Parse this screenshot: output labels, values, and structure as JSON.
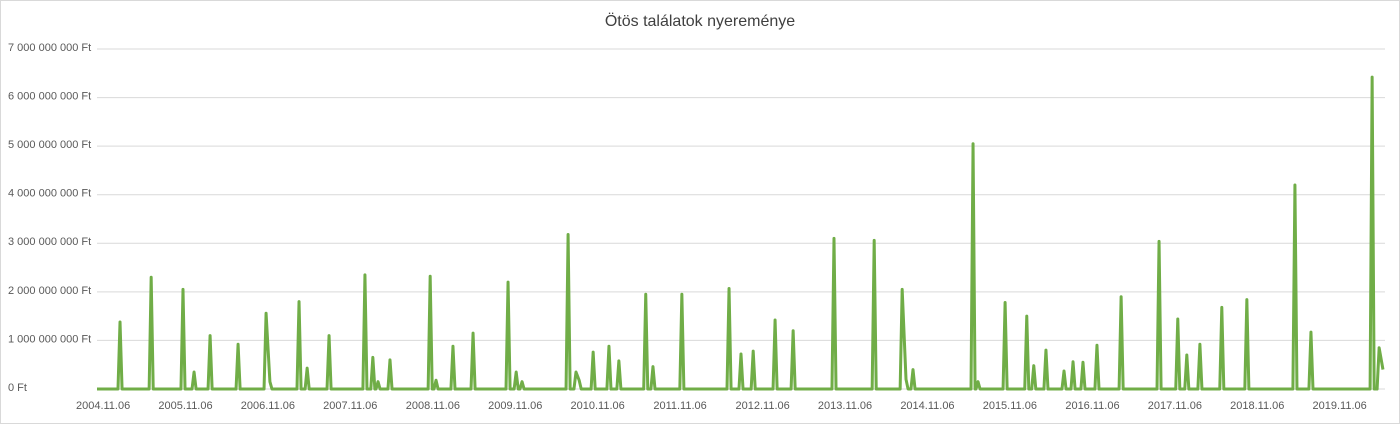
{
  "chart_data": {
    "type": "line",
    "title": "Ötös találatok nyereménye",
    "x": [
      "2004.10.10",
      "2005.01.11",
      "2005.01.20",
      "2005.01.29",
      "2005.05.29",
      "2005.06.07",
      "2005.06.16",
      "2005.10.17",
      "2005.10.26",
      "2005.11.04",
      "2005.12.05",
      "2005.12.14",
      "2005.12.23",
      "2006.02.14",
      "2006.02.23",
      "2006.03.04",
      "2006.06.18",
      "2006.06.27",
      "2006.07.06",
      "2006.10.20",
      "2006.10.29",
      "2006.11.15",
      "2006.11.24",
      "2007.03.15",
      "2007.03.24",
      "2007.04.02",
      "2007.04.20",
      "2007.04.29",
      "2007.05.08",
      "2007.07.26",
      "2007.08.04",
      "2007.08.13",
      "2008.01.01",
      "2008.01.10",
      "2008.01.19",
      "2008.02.05",
      "2008.02.14",
      "2008.02.23",
      "2008.02.28",
      "2008.03.08",
      "2008.03.17",
      "2008.04.21",
      "2008.04.30",
      "2008.05.09",
      "2008.10.16",
      "2008.10.25",
      "2008.11.03",
      "2008.11.11",
      "2008.11.20",
      "2008.11.29",
      "2009.01.25",
      "2009.02.03",
      "2009.02.12",
      "2009.04.24",
      "2009.05.03",
      "2009.05.12",
      "2009.09.26",
      "2009.10.05",
      "2009.10.14",
      "2009.11.01",
      "2009.11.10",
      "2009.11.19",
      "2009.11.27",
      "2009.12.06",
      "2009.12.15",
      "2010.06.19",
      "2010.06.28",
      "2010.07.07",
      "2010.07.24",
      "2010.08.02",
      "2010.08.16",
      "2010.08.25",
      "2010.10.08",
      "2010.10.17",
      "2010.10.26",
      "2010.12.17",
      "2010.12.26",
      "2011.01.04",
      "2011.01.30",
      "2011.02.08",
      "2011.02.17",
      "2011.05.29",
      "2011.06.07",
      "2011.06.16",
      "2011.06.30",
      "2011.07.09",
      "2011.07.18",
      "2011.11.05",
      "2011.11.14",
      "2011.11.23",
      "2012.06.01",
      "2012.06.10",
      "2012.06.19",
      "2012.07.24",
      "2012.08.02",
      "2012.08.11",
      "2012.09.16",
      "2012.09.25",
      "2012.10.04",
      "2012.12.22",
      "2012.12.31",
      "2013.01.09",
      "2013.03.12",
      "2013.03.21",
      "2013.03.30",
      "2013.09.09",
      "2013.09.18",
      "2013.09.27",
      "2014.03.06",
      "2014.03.15",
      "2014.03.24",
      "2014.07.08",
      "2014.07.17",
      "2014.08.03",
      "2014.08.12",
      "2014.08.25",
      "2014.09.03",
      "2014.09.12",
      "2015.05.18",
      "2015.05.27",
      "2015.06.05",
      "2015.06.09",
      "2015.06.18",
      "2015.06.27",
      "2015.10.07",
      "2015.10.16",
      "2015.10.25",
      "2016.01.11",
      "2016.01.20",
      "2016.01.29",
      "2016.02.11",
      "2016.02.20",
      "2016.02.29",
      "2016.04.05",
      "2016.04.14",
      "2016.04.23",
      "2016.06.24",
      "2016.07.03",
      "2016.07.12",
      "2016.08.03",
      "2016.08.12",
      "2016.08.21",
      "2016.09.16",
      "2016.09.25",
      "2016.10.04",
      "2016.11.17",
      "2016.11.26",
      "2016.12.05",
      "2017.03.04",
      "2017.03.13",
      "2017.03.22",
      "2017.08.19",
      "2017.08.28",
      "2017.09.06",
      "2017.11.10",
      "2017.11.19",
      "2017.11.28",
      "2017.12.20",
      "2017.12.29",
      "2018.01.07",
      "2018.02.16",
      "2018.02.25",
      "2018.03.06",
      "2018.05.24",
      "2018.06.02",
      "2018.06.11",
      "2018.09.12",
      "2018.09.21",
      "2018.09.30",
      "2019.04.13",
      "2019.04.22",
      "2019.05.01",
      "2019.06.23",
      "2019.07.02",
      "2019.07.11",
      "2020.03.20",
      "2020.03.29",
      "2020.04.07",
      "2020.04.20",
      "2020.04.29",
      "2020.05.16"
    ],
    "series": [
      {
        "name": "Ötös találatok nyereménye",
        "color": "#70ad47",
        "values": [
          0,
          0,
          1380000000,
          0,
          0,
          2300000000,
          0,
          0,
          2050000000,
          0,
          0,
          350000000,
          0,
          0,
          1100000000,
          0,
          0,
          920000000,
          0,
          0,
          1560000000,
          150000000,
          0,
          0,
          1800000000,
          0,
          0,
          430000000,
          0,
          0,
          1100000000,
          0,
          0,
          2350000000,
          0,
          0,
          650000000,
          0,
          0,
          150000000,
          0,
          0,
          600000000,
          0,
          0,
          2320000000,
          0,
          0,
          180000000,
          0,
          0,
          880000000,
          0,
          0,
          1150000000,
          0,
          0,
          2200000000,
          0,
          0,
          350000000,
          0,
          0,
          150000000,
          0,
          0,
          3180000000,
          0,
          0,
          350000000,
          180000000,
          0,
          0,
          760000000,
          0,
          0,
          880000000,
          0,
          0,
          580000000,
          0,
          0,
          1950000000,
          0,
          0,
          460000000,
          0,
          0,
          1950000000,
          0,
          0,
          2070000000,
          0,
          0,
          720000000,
          0,
          0,
          780000000,
          0,
          0,
          1420000000,
          0,
          0,
          1200000000,
          0,
          0,
          3100000000,
          0,
          0,
          3060000000,
          0,
          0,
          2050000000,
          200000000,
          0,
          0,
          400000000,
          0,
          0,
          5050000000,
          0,
          0,
          150000000,
          0,
          0,
          1780000000,
          0,
          0,
          1500000000,
          0,
          0,
          480000000,
          0,
          0,
          800000000,
          0,
          0,
          370000000,
          0,
          0,
          560000000,
          0,
          0,
          550000000,
          0,
          0,
          900000000,
          0,
          0,
          1900000000,
          0,
          0,
          3040000000,
          0,
          0,
          1440000000,
          0,
          0,
          700000000,
          0,
          0,
          920000000,
          0,
          0,
          1680000000,
          0,
          0,
          1840000000,
          0,
          0,
          4200000000,
          0,
          0,
          1170000000,
          0,
          0,
          6420000000,
          0,
          0,
          850000000,
          400000000
        ]
      }
    ],
    "xlim": [
      "2004.10.10",
      "2020.05.25"
    ],
    "xticks": [
      "2004.11.06",
      "2005.11.06",
      "2006.11.06",
      "2007.11.06",
      "2008.11.06",
      "2009.11.06",
      "2010.11.06",
      "2011.11.06",
      "2012.11.06",
      "2013.11.06",
      "2014.11.06",
      "2015.11.06",
      "2016.11.06",
      "2017.11.06",
      "2018.11.06",
      "2019.11.06"
    ],
    "ylim": [
      0,
      7000000000
    ],
    "yticks": [
      {
        "value": 0,
        "label": "0 Ft"
      },
      {
        "value": 1000000000,
        "label": "1 000 000 000 Ft"
      },
      {
        "value": 2000000000,
        "label": "2 000 000 000 Ft"
      },
      {
        "value": 3000000000,
        "label": "3 000 000 000 Ft"
      },
      {
        "value": 4000000000,
        "label": "4 000 000 000 Ft"
      },
      {
        "value": 5000000000,
        "label": "5 000 000 000 Ft"
      },
      {
        "value": 6000000000,
        "label": "6 000 000 000 Ft"
      },
      {
        "value": 7000000000,
        "label": "7 000 000 000 Ft"
      }
    ],
    "grid": true
  }
}
